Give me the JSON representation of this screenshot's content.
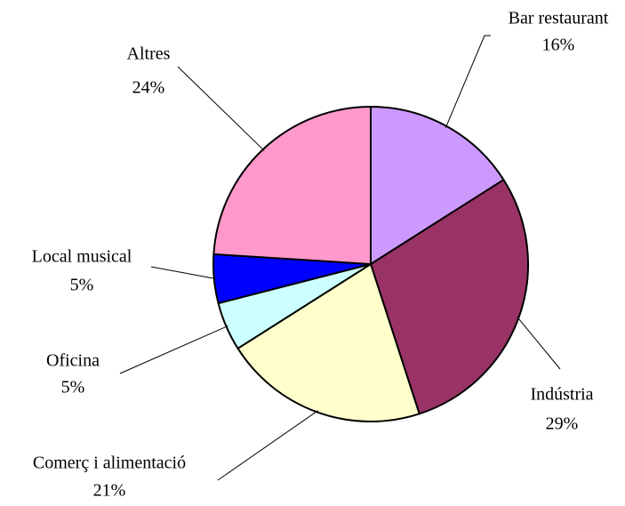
{
  "chart_data": {
    "type": "pie",
    "categories": [
      "Bar restaurant",
      "Indústria",
      "Comerç i alimentació",
      "Oficina",
      "Local musical",
      "Altres"
    ],
    "values": [
      16,
      29,
      21,
      5,
      5,
      24
    ],
    "value_labels": [
      "16%",
      "29%",
      "21%",
      "5%",
      "5%",
      "24%"
    ],
    "colors": [
      "#cc99ff",
      "#993366",
      "#ffffcc",
      "#ccffff",
      "#0000ff",
      "#ff99cc"
    ]
  }
}
